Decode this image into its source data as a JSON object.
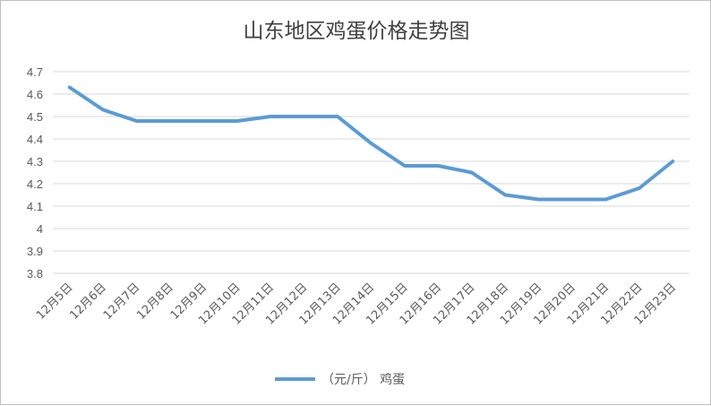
{
  "chart_data": {
    "type": "line",
    "title": "山东地区鸡蛋价格走势图",
    "xlabel": "",
    "ylabel": "",
    "categories": [
      "12月5日",
      "12月6日",
      "12月7日",
      "12月8日",
      "12月9日",
      "12月10日",
      "12月11日",
      "12月12日",
      "12月13日",
      "12月14日",
      "12月15日",
      "12月16日",
      "12月17日",
      "12月18日",
      "12月19日",
      "12月20日",
      "12月21日",
      "12月22日",
      "12月23日"
    ],
    "series": [
      {
        "name": "（元/斤） 鸡蛋",
        "values": [
          4.63,
          4.53,
          4.48,
          4.48,
          4.48,
          4.48,
          4.5,
          4.5,
          4.5,
          4.38,
          4.28,
          4.28,
          4.25,
          4.15,
          4.13,
          4.13,
          4.13,
          4.18,
          4.3
        ],
        "color": "#5b9bd5"
      }
    ],
    "ylim": [
      3.8,
      4.7
    ],
    "yticks": [
      "3.8",
      "3.9",
      "4",
      "4.1",
      "4.2",
      "4.3",
      "4.4",
      "4.5",
      "4.6",
      "4.7"
    ],
    "grid": true,
    "legend_position": "bottom"
  },
  "colors": {
    "line": "#5b9bd5",
    "grid": "#d9d9d9",
    "text": "#595959",
    "title": "#404040"
  }
}
